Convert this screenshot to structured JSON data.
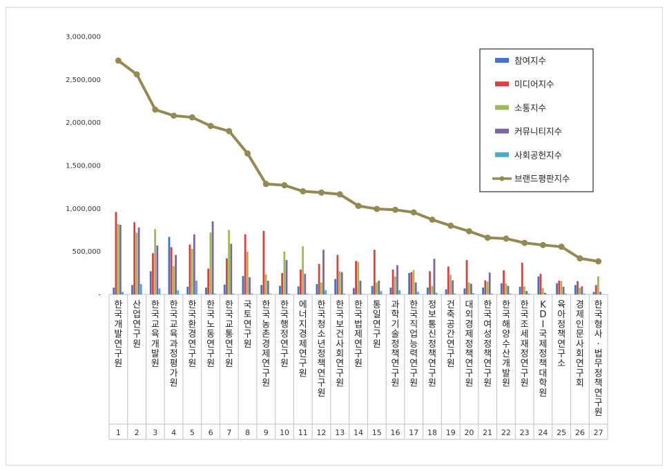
{
  "chart_data": {
    "type": "bar",
    "categories": [
      "한국개발연구원",
      "산업연구원",
      "한국교육개발원",
      "한국교육과정평가원",
      "한국환경연구원",
      "한국노동연구원",
      "한국교통연구원",
      "국토연구원",
      "한국농촌경제연구원",
      "한국행정연구원",
      "에너지경제연구원",
      "한국청소년정책연구원",
      "한국보건사회연구원",
      "한국법제연구원",
      "통일연구원",
      "과학기술정책연구원",
      "한국직업능력연구원",
      "정보통신정책연구원",
      "건축공간연구원",
      "대외경제정책연구원",
      "한국여성정책연구원",
      "한국해양수산개발원",
      "한국조세재정연구원",
      "KDI국제정책대학원",
      "육아정책연구소",
      "경제인문사회연구회",
      "한국형사·법무정책연구원"
    ],
    "ranks": [
      "1",
      "2",
      "3",
      "4",
      "5",
      "6",
      "7",
      "8",
      "9",
      "10",
      "11",
      "12",
      "13",
      "14",
      "15",
      "16",
      "17",
      "18",
      "19",
      "20",
      "21",
      "22",
      "23",
      "24",
      "25",
      "26",
      "27"
    ],
    "y_tick_labels": [
      "-",
      "500,000",
      "1,000,000",
      "1,500,000",
      "2,000,000",
      "2,500,000",
      "3,000,000"
    ],
    "ylim": [
      0,
      3000000
    ],
    "legend_position": "top-right",
    "grid": false,
    "series": [
      {
        "name": "참여지수",
        "type": "bar",
        "color": "#4472C4",
        "values": [
          80000,
          110000,
          270000,
          670000,
          90000,
          80000,
          115000,
          215000,
          110000,
          100000,
          95000,
          120000,
          180000,
          75000,
          100000,
          80000,
          250000,
          80000,
          60000,
          70000,
          80000,
          130000,
          90000,
          210000,
          130000,
          110000,
          30000
        ]
      },
      {
        "name": "미디어지수",
        "type": "bar",
        "color": "#D9413C",
        "values": [
          960000,
          840000,
          480000,
          550000,
          580000,
          300000,
          420000,
          700000,
          740000,
          250000,
          290000,
          355000,
          460000,
          390000,
          520000,
          290000,
          260000,
          270000,
          325000,
          400000,
          165000,
          280000,
          370000,
          240000,
          160000,
          155000,
          110000
        ]
      },
      {
        "name": "소통지수",
        "type": "bar",
        "color": "#9BBB59",
        "values": [
          820000,
          720000,
          760000,
          330000,
          530000,
          720000,
          750000,
          500000,
          235000,
          500000,
          560000,
          140000,
          270000,
          380000,
          140000,
          210000,
          285000,
          100000,
          230000,
          140000,
          150000,
          130000,
          95000,
          75000,
          155000,
          80000,
          210000
        ]
      },
      {
        "name": "커뮤니티지수",
        "type": "bar",
        "color": "#8064A2",
        "values": [
          810000,
          780000,
          570000,
          460000,
          700000,
          850000,
          590000,
          200000,
          160000,
          400000,
          240000,
          520000,
          260000,
          160000,
          160000,
          340000,
          140000,
          415000,
          165000,
          125000,
          255000,
          100000,
          40000,
          20000,
          90000,
          95000,
          30000
        ]
      },
      {
        "name": "사회공헌지수",
        "type": "bar",
        "color": "#4BACC6",
        "values": [
          30000,
          120000,
          70000,
          50000,
          160000,
          10000,
          10000,
          10000,
          10000,
          10000,
          10000,
          50000,
          10000,
          5000,
          40000,
          50000,
          30000,
          20000,
          10000,
          15000,
          10000,
          10000,
          10000,
          5000,
          10000,
          10000,
          5000
        ]
      },
      {
        "name": "브랜드평판지수",
        "type": "line",
        "color": "#938953",
        "values": [
          2720000,
          2560000,
          2150000,
          2080000,
          2060000,
          1960000,
          1900000,
          1640000,
          1285000,
          1270000,
          1200000,
          1185000,
          1165000,
          1030000,
          995000,
          985000,
          955000,
          870000,
          800000,
          735000,
          660000,
          650000,
          600000,
          575000,
          555000,
          420000,
          385000
        ]
      }
    ]
  }
}
